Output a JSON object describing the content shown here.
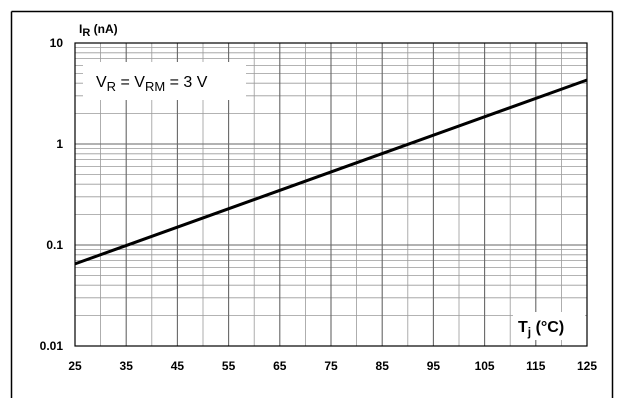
{
  "chart_data": {
    "type": "line",
    "x_scale": "linear",
    "y_scale": "log",
    "xlim": [
      25,
      125
    ],
    "ylim": [
      0.01,
      10
    ],
    "x_ticks": [
      "25",
      "35",
      "45",
      "55",
      "65",
      "75",
      "85",
      "95",
      "105",
      "115",
      "125"
    ],
    "y_ticks": [
      {
        "value": 10,
        "label": "10"
      },
      {
        "value": 1,
        "label": "1"
      },
      {
        "value": 0.1,
        "label": "0.1"
      },
      {
        "value": 0.01,
        "label": "0.01"
      }
    ],
    "ylabel": {
      "main": "I",
      "sub": "R",
      "unit": " (nA)"
    },
    "xlabel": {
      "main": "T",
      "sub": "j",
      "unit": " (°C)"
    },
    "annotation": {
      "p1": "V",
      "s1": "R",
      "p2": " = V",
      "s2": "RM",
      "p3": " = 3 V"
    },
    "grid": true,
    "series": [
      {
        "x": [
          25,
          125
        ],
        "y": [
          0.065,
          4.3
        ],
        "color": "#000000"
      }
    ]
  }
}
